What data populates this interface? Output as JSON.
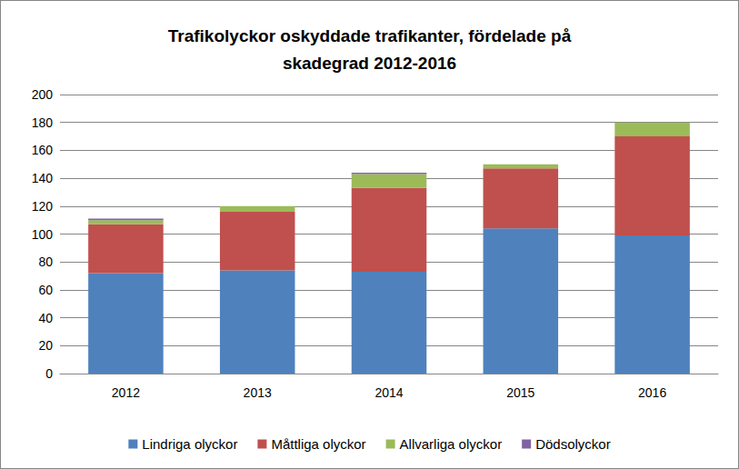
{
  "chart_data": {
    "type": "bar",
    "stacked": true,
    "title": "Trafikolyckor oskyddade trafikanter, fördelade på\nskadegrad 2012-2016",
    "categories": [
      "2012",
      "2013",
      "2014",
      "2015",
      "2016"
    ],
    "series": [
      {
        "name": "Lindriga olyckor",
        "color": "#4f81bd",
        "values": [
          72,
          74,
          73,
          104,
          99
        ]
      },
      {
        "name": "Måttliga olyckor",
        "color": "#c0504d",
        "values": [
          35,
          42,
          60,
          43,
          71
        ]
      },
      {
        "name": "Allvarliga olyckor",
        "color": "#9bbb59",
        "values": [
          3,
          4,
          10,
          3,
          10
        ]
      },
      {
        "name": "Dödsolyckor",
        "color": "#8064a2",
        "values": [
          1,
          0,
          1,
          0,
          0
        ]
      }
    ],
    "ylim": [
      0,
      200
    ],
    "yticks": [
      0,
      20,
      40,
      60,
      80,
      100,
      120,
      140,
      160,
      180,
      200
    ],
    "grid": true,
    "legend": "bottom"
  }
}
